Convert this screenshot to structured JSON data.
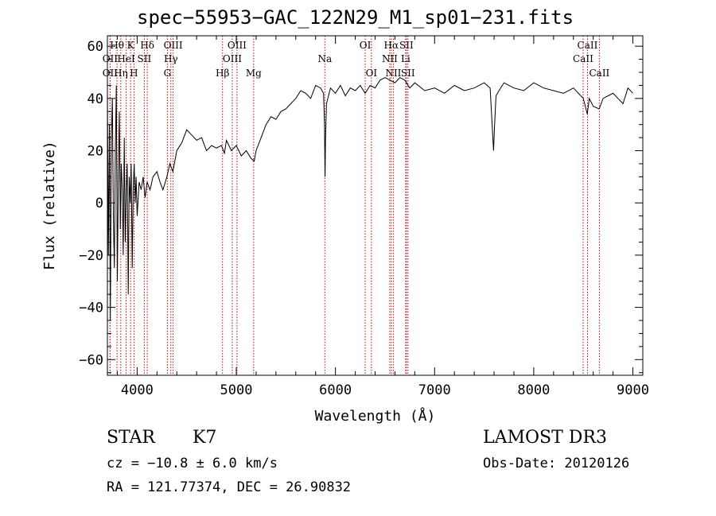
{
  "info": {
    "obj_class": "STAR",
    "subclass": "K7",
    "cz": "cz = −10.8 ± 6.0 km/s",
    "radec": "RA = 121.77374, DEC =  26.90832",
    "survey": "LAMOST DR3",
    "obs_date": "Obs-Date: 20120126"
  },
  "chart_data": {
    "type": "line",
    "title": "spec−55953−GAC_122N29_M1_sp01−231.fits",
    "xlabel": "Wavelength (Å)",
    "ylabel": "Flux (relative)",
    "xlim": [
      3700,
      9100
    ],
    "ylim": [
      -66,
      64
    ],
    "xticks": [
      4000,
      5000,
      6000,
      7000,
      8000,
      9000
    ],
    "xtick_labels": [
      "4000",
      "5000",
      "6000",
      "7000",
      "8000",
      "9000"
    ],
    "yticks": [
      -60,
      -40,
      -20,
      0,
      20,
      40,
      60
    ],
    "ytick_labels": [
      "−60",
      "−40",
      "−20",
      "0",
      "20",
      "40",
      "60"
    ],
    "series": [
      {
        "name": "flux",
        "x": [
          3700,
          3710,
          3720,
          3730,
          3740,
          3750,
          3760,
          3770,
          3780,
          3790,
          3800,
          3810,
          3820,
          3830,
          3840,
          3850,
          3860,
          3870,
          3880,
          3890,
          3900,
          3910,
          3920,
          3930,
          3940,
          3950,
          3960,
          3970,
          3980,
          3990,
          4000,
          4020,
          4040,
          4060,
          4080,
          4100,
          4130,
          4160,
          4200,
          4230,
          4260,
          4300,
          4330,
          4360,
          4400,
          4450,
          4500,
          4550,
          4600,
          4650,
          4700,
          4750,
          4800,
          4850,
          4880,
          4900,
          4950,
          5000,
          5050,
          5100,
          5150,
          5180,
          5200,
          5250,
          5300,
          5350,
          5400,
          5450,
          5500,
          5550,
          5600,
          5650,
          5700,
          5750,
          5800,
          5850,
          5880,
          5890,
          5895,
          5900,
          5910,
          5950,
          6000,
          6050,
          6100,
          6150,
          6200,
          6250,
          6300,
          6350,
          6400,
          6450,
          6500,
          6550,
          6600,
          6650,
          6700,
          6750,
          6800,
          6900,
          7000,
          7100,
          7200,
          7300,
          7400,
          7500,
          7560,
          7580,
          7595,
          7605,
          7620,
          7650,
          7700,
          7800,
          7900,
          8000,
          8100,
          8200,
          8300,
          8400,
          8500,
          8540,
          8560,
          8600,
          8660,
          8700,
          8750,
          8800,
          8850,
          8900,
          8950,
          9000
        ],
        "values": [
          42,
          -20,
          30,
          -45,
          25,
          40,
          -5,
          -25,
          20,
          45,
          -30,
          10,
          35,
          -10,
          15,
          5,
          -20,
          25,
          -15,
          5,
          15,
          -35,
          10,
          0,
          15,
          -25,
          5,
          15,
          0,
          10,
          -5,
          8,
          5,
          10,
          2,
          8,
          5,
          10,
          12,
          8,
          5,
          10,
          15,
          12,
          20,
          23,
          28,
          26,
          24,
          25,
          20,
          22,
          21,
          22,
          19,
          24,
          20,
          22,
          18,
          20,
          17,
          16,
          20,
          25,
          30,
          33,
          32,
          35,
          36,
          38,
          40,
          43,
          42,
          40,
          45,
          44,
          42,
          30,
          10,
          25,
          38,
          44,
          42,
          45,
          41,
          44,
          43,
          45,
          42,
          45,
          44,
          47,
          48,
          47,
          46,
          48,
          47,
          44,
          46,
          43,
          44,
          42,
          45,
          43,
          44,
          46,
          44,
          30,
          20,
          30,
          41,
          43,
          46,
          44,
          43,
          46,
          44,
          43,
          42,
          44,
          40,
          34,
          40,
          37,
          36,
          40,
          41,
          42,
          40,
          38,
          44,
          42
        ]
      }
    ],
    "lines": [
      {
        "name": "Hθ",
        "x": 3797,
        "row": 1
      },
      {
        "name": "OII",
        "x": 3727,
        "row": 2
      },
      {
        "name": "OII",
        "x": 3727,
        "row": 3
      },
      {
        "name": "K",
        "x": 3934,
        "row": 1
      },
      {
        "name": "HeI",
        "x": 3889,
        "row": 2
      },
      {
        "name": "Hη",
        "x": 3835,
        "row": 3
      },
      {
        "name": "Hδ",
        "x": 4102,
        "row": 1
      },
      {
        "name": "SII",
        "x": 4072,
        "row": 2
      },
      {
        "name": "H",
        "x": 3968,
        "row": 3
      },
      {
        "name": "OIII",
        "x": 4363,
        "row": 1
      },
      {
        "name": "Hγ",
        "x": 4340,
        "row": 2
      },
      {
        "name": "G",
        "x": 4305,
        "row": 3
      },
      {
        "name": "OIII",
        "x": 5007,
        "row": 1
      },
      {
        "name": "OIII",
        "x": 4959,
        "row": 2
      },
      {
        "name": "Hβ",
        "x": 4861,
        "row": 3
      },
      {
        "name": "Mg",
        "x": 5175,
        "row": 3
      },
      {
        "name": "Na",
        "x": 5893,
        "row": 2
      },
      {
        "name": "OI",
        "x": 6300,
        "row": 1
      },
      {
        "name": "OI",
        "x": 6363,
        "row": 3
      },
      {
        "name": "Hα",
        "x": 6563,
        "row": 1
      },
      {
        "name": "SII",
        "x": 6716,
        "row": 1
      },
      {
        "name": "NII",
        "x": 6548,
        "row": 2
      },
      {
        "name": "Li",
        "x": 6708,
        "row": 2
      },
      {
        "name": "NII",
        "x": 6584,
        "row": 3
      },
      {
        "name": "SII",
        "x": 6731,
        "row": 3
      },
      {
        "name": "CaII",
        "x": 8542,
        "row": 1
      },
      {
        "name": "CaII",
        "x": 8498,
        "row": 2
      },
      {
        "name": "CaII",
        "x": 8662,
        "row": 3
      }
    ]
  }
}
